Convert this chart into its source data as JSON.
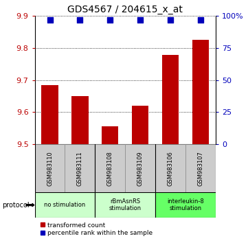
{
  "title": "GDS4567 / 204615_x_at",
  "samples": [
    "GSM983110",
    "GSM983111",
    "GSM983108",
    "GSM983109",
    "GSM983106",
    "GSM983107"
  ],
  "bar_values": [
    9.685,
    9.65,
    9.555,
    9.62,
    9.778,
    9.825
  ],
  "percentile_values": [
    97,
    97,
    97,
    97,
    97,
    97
  ],
  "ylim_left": [
    9.5,
    9.9
  ],
  "ylim_right": [
    0,
    100
  ],
  "yticks_left": [
    9.5,
    9.6,
    9.7,
    9.8,
    9.9
  ],
  "yticks_right": [
    0,
    25,
    50,
    75,
    100
  ],
  "bar_color": "#bb0000",
  "dot_color": "#0000bb",
  "bg_color": "#ffffff",
  "plot_bg": "#ffffff",
  "groups": [
    {
      "label": "no stimulation",
      "start": 0,
      "end": 2,
      "color": "#ccffcc"
    },
    {
      "label": "rBmAsnRS\nstimulation",
      "start": 2,
      "end": 4,
      "color": "#ccffcc"
    },
    {
      "label": "interleukin-8\nstimulation",
      "start": 4,
      "end": 6,
      "color": "#66ff66"
    }
  ],
  "sample_box_color": "#cccccc",
  "sample_box_edge": "#888888",
  "legend_bar_label": "transformed count",
  "legend_dot_label": "percentile rank within the sample",
  "protocol_label": "protocol",
  "title_fontsize": 10,
  "tick_fontsize": 8,
  "label_fontsize": 6,
  "protocol_fontsize": 7,
  "bar_width": 0.55,
  "dot_size": 40
}
